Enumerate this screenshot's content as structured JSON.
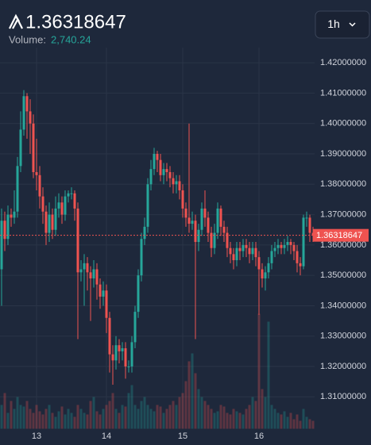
{
  "chart_data": {
    "type": "candlestick",
    "last_price": 1.36318647,
    "volume_label": "Volume:",
    "volume_value": "2,740.24",
    "interval": "1h",
    "up_color": "#26a69a",
    "down_color": "#ef5350",
    "categories": [
      null,
      null,
      null,
      null,
      null,
      null,
      null,
      null,
      null,
      null,
      null,
      "13",
      null,
      null,
      null,
      null,
      null,
      null,
      null,
      null,
      null,
      null,
      null,
      null,
      null,
      null,
      null,
      null,
      null,
      null,
      null,
      null,
      null,
      "14",
      null,
      null,
      null,
      null,
      null,
      null,
      null,
      null,
      null,
      null,
      null,
      null,
      null,
      null,
      null,
      null,
      null,
      null,
      null,
      null,
      null,
      null,
      null,
      "15",
      null,
      null,
      null,
      null,
      null,
      null,
      null,
      null,
      null,
      null,
      null,
      null,
      null,
      null,
      null,
      null,
      null,
      null,
      null,
      null,
      null,
      null,
      null,
      "16",
      null,
      null,
      null,
      null,
      null,
      null,
      null,
      null,
      null,
      null,
      null,
      null,
      null,
      null,
      null,
      null,
      null
    ],
    "open": [
      1.352,
      1.368,
      1.362,
      1.37,
      1.369,
      1.371,
      1.386,
      1.398,
      1.409,
      1.404,
      1.4,
      1.384,
      1.383,
      1.376,
      1.371,
      1.364,
      1.37,
      1.365,
      1.372,
      1.374,
      1.37,
      1.376,
      1.377,
      1.377,
      1.372,
      1.351,
      1.352,
      1.354,
      1.351,
      1.349,
      1.352,
      1.347,
      1.343,
      1.345,
      1.336,
      1.324,
      1.322,
      1.327,
      1.325,
      1.326,
      1.32,
      1.32,
      1.328,
      1.338,
      1.35,
      1.362,
      1.366,
      1.38,
      1.385,
      1.39,
      1.388,
      1.383,
      1.385,
      1.384,
      1.382,
      1.38,
      1.381,
      1.378,
      1.372,
      1.369,
      1.367,
      1.368,
      1.361,
      1.365,
      1.372,
      1.369,
      1.364,
      1.359,
      1.364,
      1.372,
      1.366,
      1.364,
      1.359,
      1.357,
      1.355,
      1.359,
      1.358,
      1.36,
      1.359,
      1.357,
      1.359,
      1.356,
      1.352,
      1.349,
      1.351,
      1.354,
      1.358,
      1.359,
      1.36,
      1.359,
      1.36,
      1.361,
      1.36,
      1.358,
      1.354,
      1.353,
      1.369,
      1.369,
      1.364
    ],
    "high": [
      1.372,
      1.371,
      1.373,
      1.372,
      1.378,
      1.389,
      1.404,
      1.411,
      1.41,
      1.408,
      1.403,
      1.395,
      1.386,
      1.379,
      1.373,
      1.374,
      1.372,
      1.376,
      1.377,
      1.376,
      1.378,
      1.378,
      1.379,
      1.378,
      1.374,
      1.355,
      1.357,
      1.356,
      1.353,
      1.355,
      1.354,
      1.349,
      1.348,
      1.347,
      1.338,
      1.327,
      1.33,
      1.329,
      1.328,
      1.328,
      1.322,
      1.33,
      1.34,
      1.352,
      1.364,
      1.369,
      1.382,
      1.388,
      1.392,
      1.391,
      1.39,
      1.387,
      1.387,
      1.386,
      1.384,
      1.383,
      1.383,
      1.38,
      1.374,
      1.4,
      1.371,
      1.37,
      1.367,
      1.374,
      1.378,
      1.371,
      1.366,
      1.367,
      1.374,
      1.373,
      1.368,
      1.366,
      1.361,
      1.359,
      1.361,
      1.361,
      1.362,
      1.362,
      1.361,
      1.361,
      1.361,
      1.358,
      1.354,
      1.353,
      1.356,
      1.36,
      1.361,
      1.362,
      1.361,
      1.362,
      1.363,
      1.362,
      1.361,
      1.36,
      1.356,
      1.37,
      1.371,
      1.37,
      1.366
    ],
    "low": [
      1.34,
      1.358,
      1.36,
      1.366,
      1.367,
      1.369,
      1.384,
      1.396,
      1.395,
      1.39,
      1.382,
      1.378,
      1.372,
      1.367,
      1.36,
      1.361,
      1.362,
      1.363,
      1.369,
      1.367,
      1.368,
      1.374,
      1.375,
      1.368,
      1.329,
      1.348,
      1.34,
      1.345,
      1.335,
      1.346,
      1.342,
      1.339,
      1.34,
      1.331,
      1.318,
      1.314,
      1.319,
      1.321,
      1.322,
      1.316,
      1.318,
      1.318,
      1.326,
      1.336,
      1.348,
      1.36,
      1.364,
      1.378,
      1.383,
      1.384,
      1.381,
      1.38,
      1.381,
      1.379,
      1.377,
      1.377,
      1.375,
      1.369,
      1.366,
      1.364,
      1.365,
      1.329,
      1.358,
      1.363,
      1.366,
      1.361,
      1.356,
      1.357,
      1.362,
      1.363,
      1.361,
      1.356,
      1.354,
      1.352,
      1.353,
      1.355,
      1.356,
      1.356,
      1.354,
      1.355,
      1.353,
      1.337,
      1.346,
      1.345,
      1.349,
      1.352,
      1.356,
      1.357,
      1.357,
      1.357,
      1.358,
      1.357,
      1.355,
      1.351,
      1.35,
      1.352,
      1.366,
      1.361,
      1.361
    ],
    "close": [
      1.368,
      1.362,
      1.37,
      1.369,
      1.371,
      1.386,
      1.398,
      1.409,
      1.404,
      1.4,
      1.384,
      1.383,
      1.376,
      1.371,
      1.364,
      1.37,
      1.365,
      1.372,
      1.374,
      1.37,
      1.376,
      1.377,
      1.377,
      1.372,
      1.351,
      1.352,
      1.354,
      1.351,
      1.349,
      1.352,
      1.347,
      1.343,
      1.345,
      1.336,
      1.324,
      1.322,
      1.327,
      1.325,
      1.326,
      1.32,
      1.32,
      1.328,
      1.338,
      1.35,
      1.362,
      1.366,
      1.38,
      1.385,
      1.39,
      1.388,
      1.383,
      1.385,
      1.384,
      1.382,
      1.38,
      1.381,
      1.378,
      1.372,
      1.369,
      1.367,
      1.368,
      1.361,
      1.365,
      1.372,
      1.369,
      1.364,
      1.359,
      1.364,
      1.372,
      1.366,
      1.364,
      1.359,
      1.357,
      1.355,
      1.359,
      1.358,
      1.36,
      1.359,
      1.357,
      1.359,
      1.356,
      1.352,
      1.349,
      1.351,
      1.354,
      1.358,
      1.359,
      1.36,
      1.359,
      1.36,
      1.361,
      1.36,
      1.358,
      1.354,
      1.353,
      1.369,
      1.369,
      1.364,
      1.3632
    ],
    "volume": [
      30,
      45,
      20,
      35,
      25,
      40,
      30,
      28,
      35,
      25,
      20,
      30,
      22,
      18,
      25,
      30,
      20,
      15,
      22,
      28,
      18,
      25,
      20,
      15,
      30,
      25,
      20,
      18,
      35,
      40,
      22,
      18,
      25,
      30,
      35,
      45,
      25,
      20,
      30,
      28,
      45,
      55,
      30,
      25,
      35,
      40,
      30,
      25,
      22,
      30,
      28,
      20,
      25,
      30,
      35,
      30,
      40,
      45,
      60,
      85,
      95,
      70,
      50,
      40,
      35,
      30,
      25,
      20,
      22,
      30,
      28,
      20,
      18,
      25,
      22,
      20,
      18,
      25,
      30,
      40,
      35,
      145,
      50,
      40,
      135,
      30,
      25,
      20,
      18,
      22,
      15,
      20,
      12,
      18,
      10,
      25,
      15,
      12,
      10
    ],
    "ylim": [
      1.2995,
      1.425
    ],
    "yticks": [
      {
        "value": 1.31,
        "label": "1.31000000"
      },
      {
        "value": 1.32,
        "label": "1.32000000"
      },
      {
        "value": 1.33,
        "label": "1.33000000"
      },
      {
        "value": 1.34,
        "label": "1.34000000"
      },
      {
        "value": 1.35,
        "label": "1.35000000"
      },
      {
        "value": 1.36,
        "label": "1.36000000"
      },
      {
        "value": 1.37,
        "label": "1.37000000"
      },
      {
        "value": 1.38,
        "label": "1.38000000"
      },
      {
        "value": 1.39,
        "label": "1.39000000"
      },
      {
        "value": 1.4,
        "label": "1.40000000"
      },
      {
        "value": 1.41,
        "label": "1.41000000"
      },
      {
        "value": 1.42,
        "label": "1.42000000"
      }
    ],
    "grid": true
  }
}
